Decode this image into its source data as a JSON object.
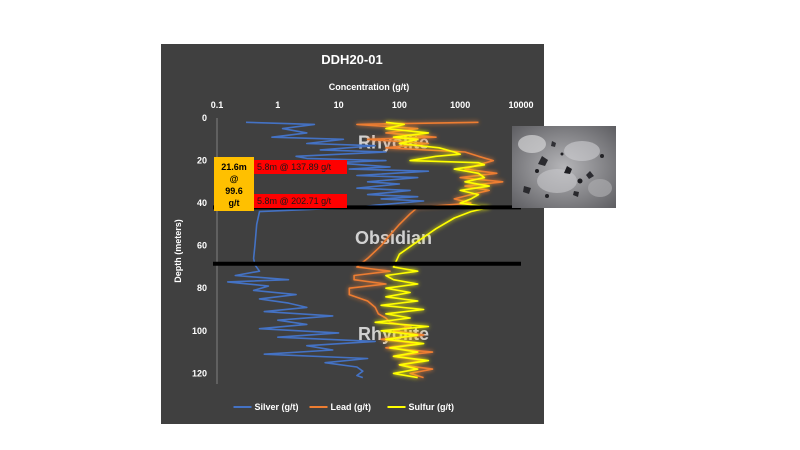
{
  "chart_data": {
    "type": "line",
    "title": "DDH20-01",
    "xlabel": "Concentration (g/t)",
    "ylabel": "Depth (meters)",
    "x_scale": "log",
    "xlim": [
      0.1,
      10000
    ],
    "ylim": [
      0,
      125
    ],
    "x_ticks": [
      "0.1",
      "1",
      "10",
      "100",
      "1000",
      "10000"
    ],
    "y_ticks": [
      "0",
      "20",
      "40",
      "60",
      "80",
      "100",
      "120"
    ],
    "grid": false,
    "legend": "bottom",
    "series": [
      {
        "name": "Silver (g/t)",
        "color": "#4472c4",
        "glow": false,
        "points": [
          [
            0.3,
            2
          ],
          [
            4,
            3
          ],
          [
            1.2,
            5
          ],
          [
            3,
            7
          ],
          [
            0.8,
            9
          ],
          [
            12,
            10
          ],
          [
            3,
            12
          ],
          [
            40,
            13
          ],
          [
            5,
            15
          ],
          [
            60,
            16
          ],
          [
            2,
            18
          ],
          [
            3,
            19
          ],
          [
            60,
            20
          ],
          [
            8,
            21
          ],
          [
            70,
            23
          ],
          [
            15,
            24
          ],
          [
            300,
            25
          ],
          [
            20,
            27
          ],
          [
            200,
            28
          ],
          [
            30,
            30
          ],
          [
            100,
            31
          ],
          [
            20,
            33
          ],
          [
            150,
            34
          ],
          [
            30,
            36
          ],
          [
            200,
            37
          ],
          [
            50,
            38
          ],
          [
            250,
            39
          ],
          [
            40,
            41
          ],
          [
            20,
            42
          ],
          [
            0.5,
            44
          ],
          [
            0.45,
            50
          ],
          [
            0.42,
            60
          ],
          [
            0.4,
            66
          ],
          [
            0.42,
            69
          ],
          [
            0.5,
            72
          ],
          [
            0.2,
            74
          ],
          [
            1.5,
            76
          ],
          [
            0.15,
            77
          ],
          [
            0.7,
            79
          ],
          [
            0.4,
            81
          ],
          [
            2,
            83
          ],
          [
            0.5,
            85
          ],
          [
            1.5,
            87
          ],
          [
            3,
            89
          ],
          [
            0.6,
            91
          ],
          [
            8,
            93
          ],
          [
            1,
            95
          ],
          [
            3,
            97
          ],
          [
            0.5,
            99
          ],
          [
            10,
            101
          ],
          [
            1,
            103
          ],
          [
            40,
            105
          ],
          [
            3,
            107
          ],
          [
            8,
            109
          ],
          [
            0.6,
            111
          ],
          [
            30,
            113
          ],
          [
            6,
            115
          ],
          [
            20,
            117
          ],
          [
            25,
            119
          ],
          [
            20,
            121
          ],
          [
            25,
            122
          ]
        ]
      },
      {
        "name": "Lead (g/t)",
        "color": "#ed7d31",
        "glow": true,
        "points": [
          [
            2000,
            2
          ],
          [
            20,
            3
          ],
          [
            200,
            5
          ],
          [
            60,
            7
          ],
          [
            400,
            9
          ],
          [
            30,
            10
          ],
          [
            300,
            12
          ],
          [
            60,
            14
          ],
          [
            1200,
            16
          ],
          [
            2000,
            18
          ],
          [
            3500,
            20
          ],
          [
            2000,
            22
          ],
          [
            1200,
            24
          ],
          [
            4000,
            26
          ],
          [
            1000,
            28
          ],
          [
            5000,
            30
          ],
          [
            1200,
            32
          ],
          [
            3000,
            34
          ],
          [
            1500,
            36
          ],
          [
            800,
            38
          ],
          [
            1500,
            40
          ],
          [
            200,
            42
          ],
          [
            150,
            45
          ],
          [
            100,
            50
          ],
          [
            70,
            55
          ],
          [
            50,
            60
          ],
          [
            30,
            66
          ],
          [
            20,
            70
          ],
          [
            70,
            72
          ],
          [
            18,
            74
          ],
          [
            18,
            76
          ],
          [
            60,
            78
          ],
          [
            15,
            80
          ],
          [
            15,
            83
          ],
          [
            30,
            86
          ],
          [
            40,
            89
          ],
          [
            45,
            92
          ],
          [
            60,
            94
          ],
          [
            70,
            96
          ],
          [
            150,
            98
          ],
          [
            80,
            100
          ],
          [
            250,
            102
          ],
          [
            50,
            104
          ],
          [
            200,
            106
          ],
          [
            60,
            108
          ],
          [
            350,
            110
          ],
          [
            80,
            112
          ],
          [
            250,
            114
          ],
          [
            100,
            116
          ],
          [
            350,
            118
          ],
          [
            150,
            120
          ],
          [
            250,
            122
          ]
        ]
      },
      {
        "name": "Sulfur (g/t)",
        "color": "#ffff00",
        "glow": true,
        "points": [
          [
            60,
            2
          ],
          [
            120,
            3
          ],
          [
            60,
            5
          ],
          [
            300,
            7
          ],
          [
            80,
            9
          ],
          [
            200,
            10
          ],
          [
            100,
            12
          ],
          [
            450,
            14
          ],
          [
            800,
            16
          ],
          [
            1000,
            17
          ],
          [
            400,
            18
          ],
          [
            150,
            20
          ],
          [
            2000,
            21
          ],
          [
            2500,
            22
          ],
          [
            800,
            24
          ],
          [
            2000,
            26
          ],
          [
            2500,
            28
          ],
          [
            1200,
            30
          ],
          [
            3000,
            32
          ],
          [
            1000,
            34
          ],
          [
            2000,
            36
          ],
          [
            1500,
            38
          ],
          [
            1000,
            40
          ],
          [
            3000,
            42
          ],
          [
            1500,
            44
          ],
          [
            800,
            47
          ],
          [
            400,
            52
          ],
          [
            200,
            58
          ],
          [
            100,
            64
          ],
          [
            80,
            70
          ],
          [
            200,
            72
          ],
          [
            60,
            74
          ],
          [
            80,
            76
          ],
          [
            200,
            78
          ],
          [
            60,
            80
          ],
          [
            150,
            82
          ],
          [
            60,
            84
          ],
          [
            200,
            86
          ],
          [
            50,
            88
          ],
          [
            250,
            90
          ],
          [
            60,
            92
          ],
          [
            150,
            94
          ],
          [
            40,
            96
          ],
          [
            300,
            98
          ],
          [
            50,
            100
          ],
          [
            200,
            102
          ],
          [
            60,
            104
          ],
          [
            250,
            106
          ],
          [
            70,
            108
          ],
          [
            200,
            110
          ],
          [
            80,
            112
          ],
          [
            300,
            114
          ],
          [
            100,
            116
          ],
          [
            200,
            118
          ],
          [
            80,
            120
          ],
          [
            200,
            122
          ]
        ]
      }
    ],
    "horizontal_lines": [
      {
        "y": 42,
        "color": "#000000"
      },
      {
        "y": 68.5,
        "color": "#000000"
      }
    ],
    "zone_labels": [
      {
        "text": "Rhyolite",
        "x": 80,
        "y": 11
      },
      {
        "text": "Obsidian",
        "x": 80,
        "y": 56
      },
      {
        "text": "Rhyolite",
        "x": 80,
        "y": 101
      }
    ]
  },
  "annotations": {
    "intercept_total": [
      "21.6m",
      "@",
      "99.6",
      "g/t"
    ],
    "intercept_1": "5.8m @ 137.89 g/t",
    "intercept_2": "5.8m @ 202.71 g/t"
  },
  "photo": {
    "description_icon": "rock-sample-photo"
  }
}
